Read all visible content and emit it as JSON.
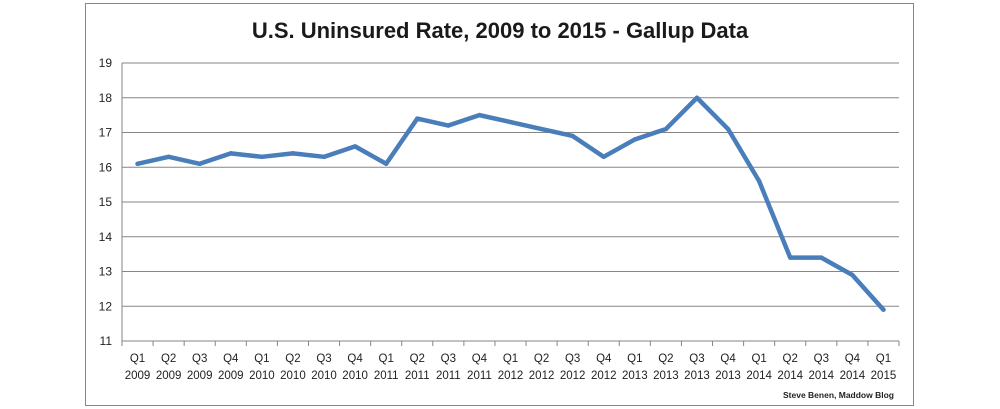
{
  "chart_data": {
    "type": "line",
    "title": "U.S. Uninsured Rate, 2009 to 2015 - Gallup Data",
    "xlabel": "",
    "ylabel": "",
    "ylim": [
      11,
      19
    ],
    "y_ticks": [
      "11",
      "12",
      "13",
      "14",
      "15",
      "16",
      "17",
      "18",
      "19"
    ],
    "grid": "horizontal",
    "legend": "none",
    "categories": [
      [
        "Q1",
        "2009"
      ],
      [
        "Q2",
        "2009"
      ],
      [
        "Q3",
        "2009"
      ],
      [
        "Q4",
        "2009"
      ],
      [
        "Q1",
        "2010"
      ],
      [
        "Q2",
        "2010"
      ],
      [
        "Q3",
        "2010"
      ],
      [
        "Q4",
        "2010"
      ],
      [
        "Q1",
        "2011"
      ],
      [
        "Q2",
        "2011"
      ],
      [
        "Q3",
        "2011"
      ],
      [
        "Q4",
        "2011"
      ],
      [
        "Q1",
        "2012"
      ],
      [
        "Q2",
        "2012"
      ],
      [
        "Q3",
        "2012"
      ],
      [
        "Q4",
        "2012"
      ],
      [
        "Q1",
        "2013"
      ],
      [
        "Q2",
        "2013"
      ],
      [
        "Q3",
        "2013"
      ],
      [
        "Q4",
        "2013"
      ],
      [
        "Q1",
        "2014"
      ],
      [
        "Q2",
        "2014"
      ],
      [
        "Q3",
        "2014"
      ],
      [
        "Q4",
        "2014"
      ],
      [
        "Q1",
        "2015"
      ]
    ],
    "series": [
      {
        "values": [
          16.1,
          16.3,
          16.1,
          16.4,
          16.3,
          16.4,
          16.3,
          16.6,
          16.1,
          17.4,
          17.2,
          17.5,
          17.3,
          17.1,
          16.9,
          16.3,
          16.8,
          17.1,
          18.0,
          17.1,
          15.6,
          13.4,
          13.4,
          12.9,
          11.9
        ]
      }
    ],
    "colors": {
      "line": "#4a7ebb",
      "grid": "#868686",
      "frame": "#868686"
    }
  },
  "credit": "Steve Benen, Maddow Blog"
}
